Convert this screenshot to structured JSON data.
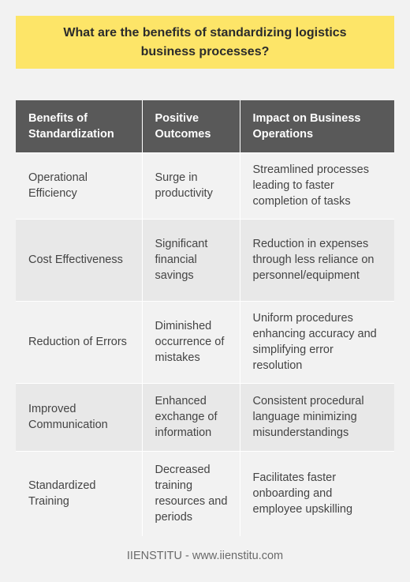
{
  "title": "What are the benefits of standardizing logistics business processes?",
  "table": {
    "headers": [
      "Benefits of Standardization",
      "Positive Outcomes",
      "Impact on Business Operations"
    ],
    "rows": [
      [
        "Operational Efficiency",
        "Surge in productivity",
        "Streamlined processes leading to faster completion of tasks"
      ],
      [
        "Cost Effectiveness",
        "Significant financial savings",
        "Reduction in expenses through less reliance on personnel/equipment"
      ],
      [
        "Reduction of Errors",
        "Diminished occurrence of mistakes",
        "Uniform procedures enhancing accuracy and simplifying error resolution"
      ],
      [
        "Improved Communication",
        "Enhanced exchange of information",
        "Consistent procedural language minimizing misunderstandings"
      ],
      [
        "Standardized Training",
        "Decreased training resources and periods",
        "Facilitates faster onboarding and employee upskilling"
      ]
    ]
  },
  "footer": "IIENSTITU - www.iienstitu.com",
  "colors": {
    "title_bg": "#fde568",
    "header_bg": "#595959",
    "row_light": "#f2f2f2",
    "row_dark": "#e8e8e8"
  }
}
